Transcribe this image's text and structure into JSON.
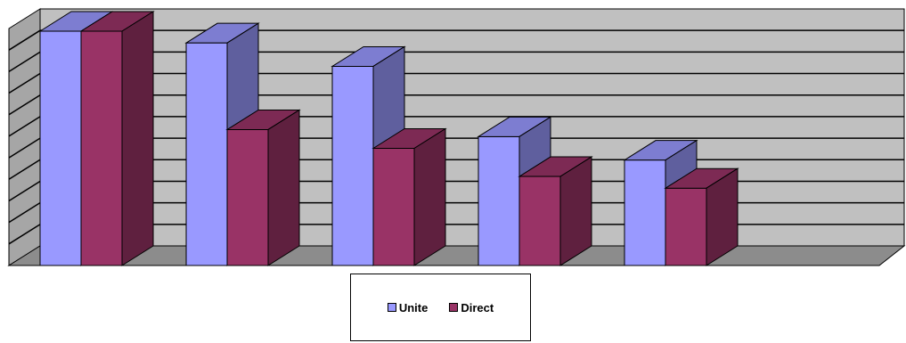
{
  "chart_data": {
    "type": "bar",
    "categories": [
      "",
      "",
      "",
      "",
      ""
    ],
    "series": [
      {
        "name": "Unite",
        "values": [
          10,
          9.5,
          8.5,
          5.5,
          4.5
        ],
        "color": "#9999FF"
      },
      {
        "name": "Direct",
        "values": [
          10,
          5.8,
          5,
          3.8,
          3.3
        ],
        "color": "#993366"
      }
    ],
    "ylim": [
      0,
      11
    ],
    "grid": true,
    "legend": "bottom",
    "walls_color": "#C0C0C0"
  }
}
